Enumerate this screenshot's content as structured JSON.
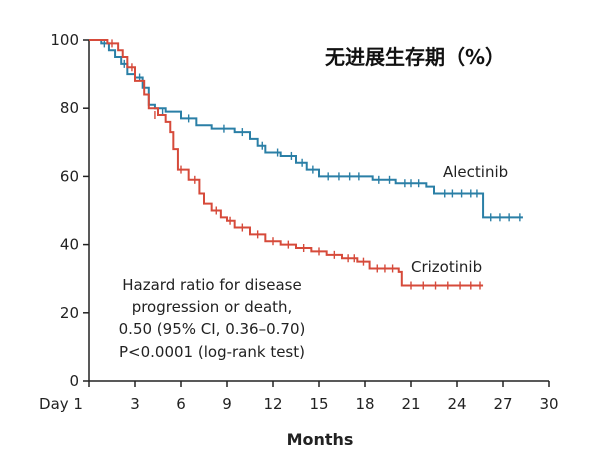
{
  "chart_data": {
    "type": "line",
    "title": "无进展生存期（%）",
    "xlabel": "Months",
    "ylabel": "",
    "xlim": [
      0,
      30
    ],
    "ylim": [
      0,
      100
    ],
    "x_ticks": [
      0,
      3,
      6,
      9,
      12,
      15,
      18,
      21,
      24,
      27,
      30
    ],
    "x_tick_labels": [
      "Day 1",
      "3",
      "6",
      "9",
      "12",
      "15",
      "18",
      "21",
      "24",
      "27",
      "30"
    ],
    "y_ticks": [
      0,
      20,
      40,
      60,
      80,
      100
    ],
    "y_tick_labels": [
      "0",
      "20",
      "40",
      "60",
      "80",
      "100"
    ],
    "grid": false,
    "step": true,
    "annotation": [
      "Hazard ratio for disease",
      "progression or death,",
      "0.50 (95% CI, 0.36–0.70)",
      "P<0.0001 (log-rank test)"
    ],
    "series": [
      {
        "name": "Alectinib",
        "color": "#2a7fa6",
        "points": [
          [
            0,
            100
          ],
          [
            0.8,
            99
          ],
          [
            1.3,
            97
          ],
          [
            1.7,
            95
          ],
          [
            2.1,
            93
          ],
          [
            2.5,
            90
          ],
          [
            3.0,
            89
          ],
          [
            3.5,
            86
          ],
          [
            3.9,
            81
          ],
          [
            4.3,
            80
          ],
          [
            5.0,
            79
          ],
          [
            6.0,
            77
          ],
          [
            7.0,
            75
          ],
          [
            8.0,
            74
          ],
          [
            9.5,
            73
          ],
          [
            10.5,
            71
          ],
          [
            11.0,
            69
          ],
          [
            11.5,
            67
          ],
          [
            12.5,
            66
          ],
          [
            13.5,
            64
          ],
          [
            14.2,
            62
          ],
          [
            15.0,
            60
          ],
          [
            18.5,
            59
          ],
          [
            20.0,
            58
          ],
          [
            22.0,
            57
          ],
          [
            22.5,
            55
          ],
          [
            25.5,
            55
          ],
          [
            25.7,
            48
          ],
          [
            28.3,
            48
          ]
        ],
        "censored": [
          [
            1.0,
            99
          ],
          [
            2.3,
            93
          ],
          [
            3.3,
            89
          ],
          [
            4.8,
            79
          ],
          [
            6.5,
            77
          ],
          [
            8.8,
            74
          ],
          [
            10.0,
            73
          ],
          [
            11.3,
            69
          ],
          [
            12.3,
            67
          ],
          [
            13.2,
            66
          ],
          [
            13.9,
            64
          ],
          [
            14.6,
            62
          ],
          [
            15.6,
            60
          ],
          [
            16.3,
            60
          ],
          [
            17.0,
            60
          ],
          [
            17.6,
            60
          ],
          [
            18.9,
            59
          ],
          [
            19.6,
            59
          ],
          [
            20.6,
            58
          ],
          [
            21.0,
            58
          ],
          [
            21.5,
            58
          ],
          [
            23.2,
            55
          ],
          [
            23.7,
            55
          ],
          [
            24.3,
            55
          ],
          [
            24.9,
            55
          ],
          [
            25.3,
            55
          ],
          [
            26.2,
            48
          ],
          [
            26.8,
            48
          ],
          [
            27.4,
            48
          ],
          [
            28.1,
            48
          ]
        ],
        "label": "Alectinib"
      },
      {
        "name": "Crizotinib",
        "color": "#d64a3a",
        "points": [
          [
            0,
            100
          ],
          [
            1.2,
            99
          ],
          [
            1.9,
            97
          ],
          [
            2.2,
            95
          ],
          [
            2.5,
            92
          ],
          [
            3.0,
            88
          ],
          [
            3.6,
            84
          ],
          [
            3.9,
            80
          ],
          [
            4.5,
            78
          ],
          [
            5.0,
            76
          ],
          [
            5.3,
            73
          ],
          [
            5.5,
            68
          ],
          [
            5.8,
            62
          ],
          [
            6.5,
            59
          ],
          [
            7.2,
            55
          ],
          [
            7.5,
            52
          ],
          [
            8.0,
            50
          ],
          [
            8.6,
            48
          ],
          [
            9.0,
            47
          ],
          [
            9.5,
            45
          ],
          [
            10.5,
            43
          ],
          [
            11.5,
            41
          ],
          [
            12.5,
            40
          ],
          [
            13.5,
            39
          ],
          [
            14.5,
            38
          ],
          [
            15.5,
            37
          ],
          [
            16.5,
            36
          ],
          [
            17.5,
            35
          ],
          [
            18.3,
            33
          ],
          [
            20.2,
            32
          ],
          [
            20.4,
            28
          ],
          [
            25.7,
            28
          ]
        ],
        "censored": [
          [
            1.5,
            99
          ],
          [
            2.8,
            92
          ],
          [
            4.3,
            78
          ],
          [
            6.0,
            62
          ],
          [
            6.9,
            59
          ],
          [
            8.3,
            50
          ],
          [
            9.2,
            47
          ],
          [
            10.0,
            45
          ],
          [
            11.0,
            43
          ],
          [
            12.0,
            41
          ],
          [
            13.0,
            40
          ],
          [
            14.0,
            39
          ],
          [
            15.0,
            38
          ],
          [
            16.0,
            37
          ],
          [
            16.9,
            36
          ],
          [
            17.3,
            36
          ],
          [
            17.9,
            35
          ],
          [
            18.8,
            33
          ],
          [
            19.3,
            33
          ],
          [
            19.8,
            33
          ],
          [
            21.0,
            28
          ],
          [
            21.8,
            28
          ],
          [
            22.6,
            28
          ],
          [
            23.4,
            28
          ],
          [
            24.2,
            28
          ],
          [
            24.9,
            28
          ],
          [
            25.5,
            28
          ]
        ],
        "label": "Crizotinib"
      }
    ]
  }
}
